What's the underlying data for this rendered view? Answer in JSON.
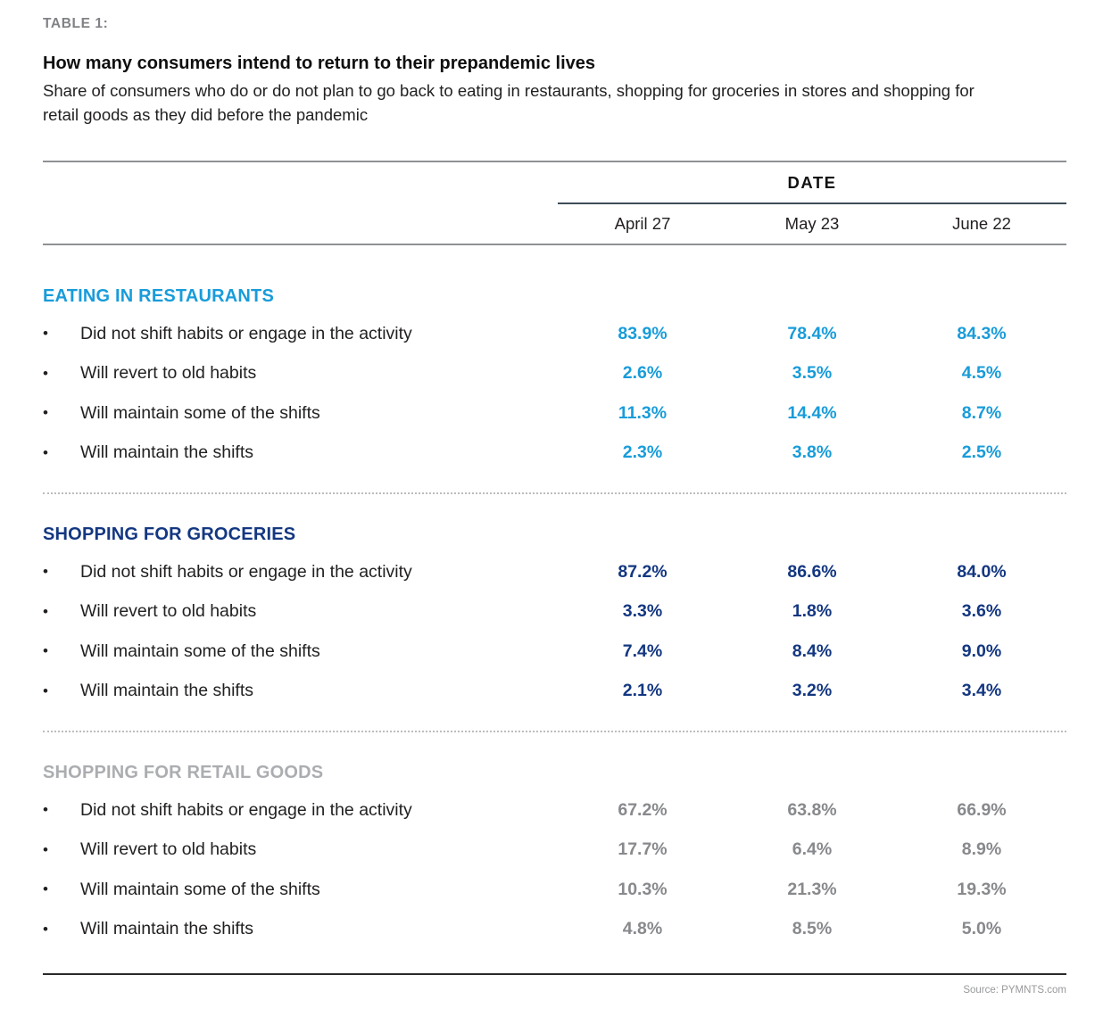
{
  "header": {
    "table_label": "TABLE 1:",
    "title": "How many consumers intend to return to their prepandemic lives",
    "subtitle": "Share of consumers who do or do not plan to go back to eating in restaurants, shopping for groceries in stores and shopping for retail goods as they did before the pandemic"
  },
  "table": {
    "date_header": "DATE",
    "columns": [
      "April 27",
      "May 23",
      "June 22"
    ],
    "bullet": "•",
    "row_labels": [
      "Did not shift habits or engage in the activity",
      "Will revert to old habits",
      "Will maintain some of the shifts",
      "Will maintain the shifts"
    ],
    "sections": [
      {
        "name": "EATING IN RESTAURANTS",
        "rows": [
          [
            "83.9%",
            "78.4%",
            "84.3%"
          ],
          [
            "2.6%",
            "3.5%",
            "4.5%"
          ],
          [
            "11.3%",
            "14.4%",
            "8.7%"
          ],
          [
            "2.3%",
            "3.8%",
            "2.5%"
          ]
        ]
      },
      {
        "name": "SHOPPING FOR GROCERIES",
        "rows": [
          [
            "87.2%",
            "86.6%",
            "84.0%"
          ],
          [
            "3.3%",
            "1.8%",
            "3.6%"
          ],
          [
            "7.4%",
            "8.4%",
            "9.0%"
          ],
          [
            "2.1%",
            "3.2%",
            "3.4%"
          ]
        ]
      },
      {
        "name": "SHOPPING FOR RETAIL GOODS",
        "rows": [
          [
            "67.2%",
            "63.8%",
            "66.9%"
          ],
          [
            "17.7%",
            "6.4%",
            "8.9%"
          ],
          [
            "10.3%",
            "21.3%",
            "19.3%"
          ],
          [
            "4.8%",
            "8.5%",
            "5.0%"
          ]
        ]
      }
    ]
  },
  "footer": {
    "source": "Source: PYMNTS.com"
  },
  "colors": {
    "restaurants_accent": "#189CDA",
    "groceries_accent": "#133781",
    "retail_header_gray": "#ABADB0",
    "retail_value_gray": "#87898C",
    "kicker_gray": "#808285",
    "rule_gray": "#8F9194",
    "date_underline_slate": "#3E4F58"
  },
  "chart_data": {
    "type": "table",
    "title": "How many consumers intend to return to their prepandemic lives",
    "subtitle": "Share of consumers who do or do not plan to go back to eating in restaurants, shopping for groceries in stores and shopping for retail goods as they did before the pandemic",
    "column_group_label": "DATE",
    "columns": [
      "April 27",
      "May 23",
      "June 22"
    ],
    "row_labels": [
      "Did not shift habits or engage in the activity",
      "Will revert to old habits",
      "Will maintain some of the shifts",
      "Will maintain the shifts"
    ],
    "value_unit": "%",
    "sections": [
      {
        "name": "EATING IN RESTAURANTS",
        "values": [
          [
            83.9,
            78.4,
            84.3
          ],
          [
            2.6,
            3.5,
            4.5
          ],
          [
            11.3,
            14.4,
            8.7
          ],
          [
            2.3,
            3.8,
            2.5
          ]
        ]
      },
      {
        "name": "SHOPPING FOR GROCERIES",
        "values": [
          [
            87.2,
            86.6,
            84.0
          ],
          [
            3.3,
            1.8,
            3.6
          ],
          [
            7.4,
            8.4,
            9.0
          ],
          [
            2.1,
            3.2,
            3.4
          ]
        ]
      },
      {
        "name": "SHOPPING FOR RETAIL GOODS",
        "values": [
          [
            67.2,
            63.8,
            66.9
          ],
          [
            17.7,
            6.4,
            8.9
          ],
          [
            10.3,
            21.3,
            19.3
          ],
          [
            4.8,
            8.5,
            5.0
          ]
        ]
      }
    ],
    "source": "Source: PYMNTS.com"
  }
}
